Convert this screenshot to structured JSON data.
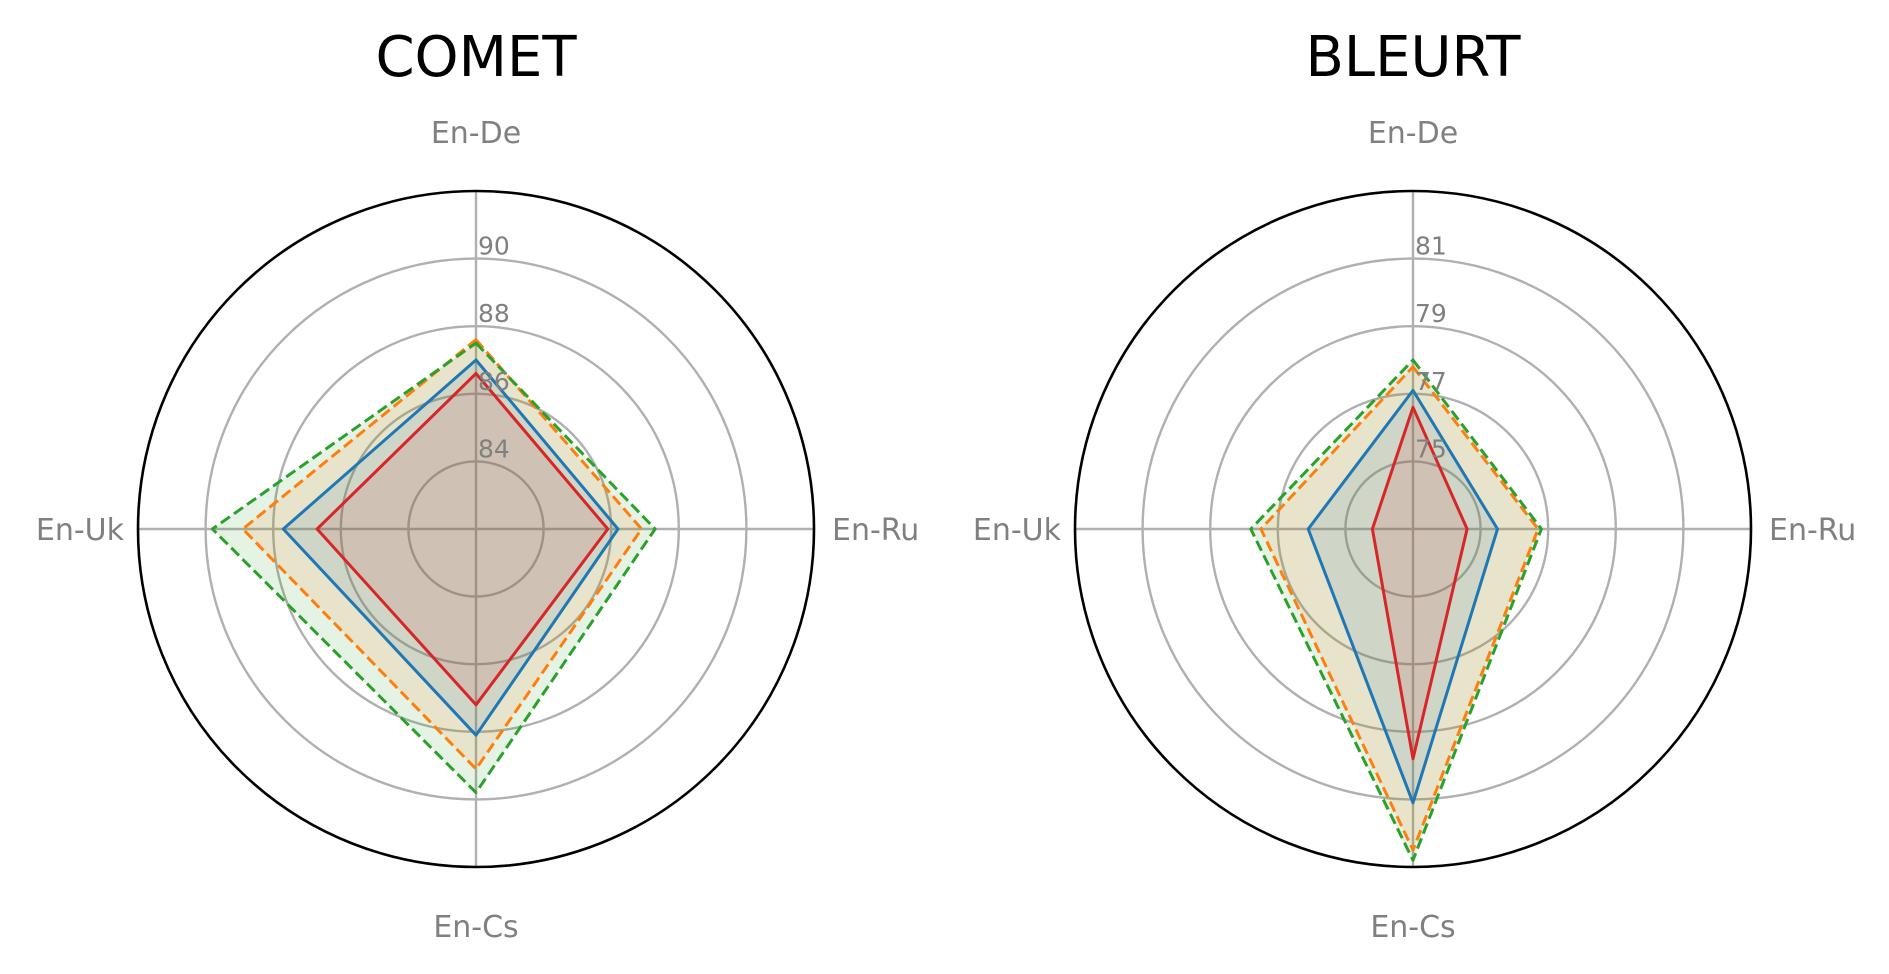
{
  "chart_data": [
    {
      "type": "radar",
      "title": "COMET",
      "axes": [
        "En-De",
        "En-Ru",
        "En-Cs",
        "En-Uk"
      ],
      "r_ticks": [
        84,
        86,
        88,
        90
      ],
      "r_range": [
        82,
        92
      ],
      "grid": true,
      "series": [
        {
          "values": [
            87.5,
            87.3,
            89.8,
            89.8
          ],
          "color": "#2ca02c",
          "style": "dashed"
        },
        {
          "values": [
            87.6,
            86.9,
            89.1,
            88.9
          ],
          "color": "#ff7f0e",
          "style": "dashed"
        },
        {
          "values": [
            87.0,
            86.2,
            88.1,
            87.7
          ],
          "color": "#1f77b4",
          "style": "solid"
        },
        {
          "values": [
            86.6,
            85.9,
            87.2,
            86.7
          ],
          "color": "#d62728",
          "style": "solid"
        }
      ]
    },
    {
      "type": "radar",
      "title": "BLEURT",
      "axes": [
        "En-De",
        "En-Ru",
        "En-Cs",
        "En-Uk"
      ],
      "r_ticks": [
        75,
        77,
        79,
        81
      ],
      "r_range": [
        73,
        83
      ],
      "grid": true,
      "series": [
        {
          "values": [
            78.0,
            76.8,
            82.8,
            77.8
          ],
          "color": "#2ca02c",
          "style": "dashed"
        },
        {
          "values": [
            77.8,
            76.7,
            82.5,
            77.5
          ],
          "color": "#ff7f0e",
          "style": "dashed"
        },
        {
          "values": [
            77.1,
            75.5,
            81.1,
            76.1
          ],
          "color": "#1f77b4",
          "style": "solid"
        },
        {
          "values": [
            76.6,
            74.6,
            79.8,
            74.2
          ],
          "color": "#d62728",
          "style": "solid"
        }
      ]
    }
  ]
}
